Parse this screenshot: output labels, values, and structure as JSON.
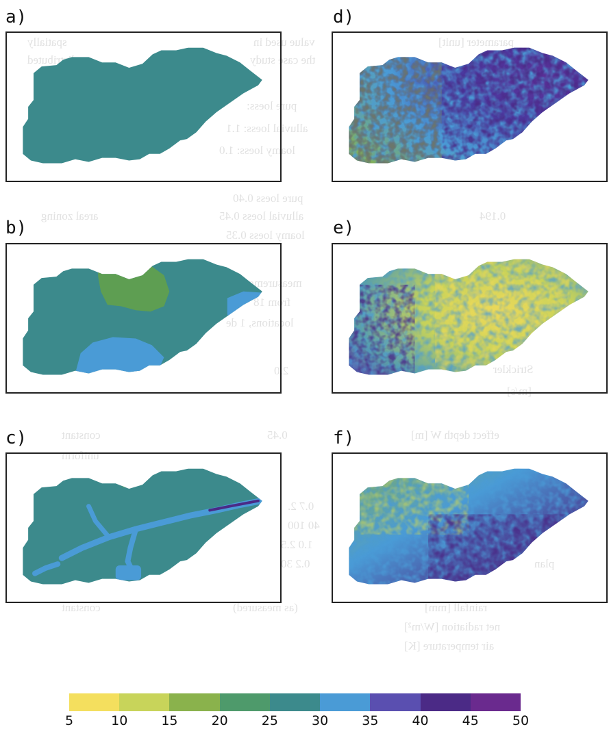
{
  "panels": [
    {
      "id": "a",
      "label": "a)"
    },
    {
      "id": "b",
      "label": "b)"
    },
    {
      "id": "c",
      "label": "c)"
    },
    {
      "id": "d",
      "label": "d)"
    },
    {
      "id": "e",
      "label": "e)"
    },
    {
      "id": "f",
      "label": "f)"
    }
  ],
  "colorbar": {
    "ticks": [
      "5",
      "10",
      "15",
      "20",
      "25",
      "30",
      "35",
      "40",
      "45",
      "50"
    ],
    "colors": [
      "#f4df5e",
      "#c8d45a",
      "#8ab24c",
      "#4e9a6b",
      "#3c8a8c",
      "#4a9bd6",
      "#5a4fb0",
      "#4b2a86",
      "#6a2a8e"
    ]
  },
  "bleed_through": [
    "parameter [unit]",
    "value used in",
    "the case study",
    "spatially",
    "distributed",
    "pure loess:",
    "alluvial loess: 1.1",
    "loamy loess: 1.0",
    "pure loess 0.40",
    "alluvial loess 0.45",
    "loamy loess 0.35",
    "0.194",
    "areal zoning",
    "measurement",
    "from 18",
    "locations, 1 de",
    "Strickler",
    "[m/s]",
    "2.0",
    "effect depth W [m]",
    "0.45",
    "constant",
    "uniform",
    "0.7 2.",
    "40 100",
    "1.0 2.5",
    "0.2 30",
    "plan",
    "rainfall [mm]",
    "(as measured)",
    "constant",
    "net radiation [W/m²]",
    "air temperature [K]"
  ]
}
